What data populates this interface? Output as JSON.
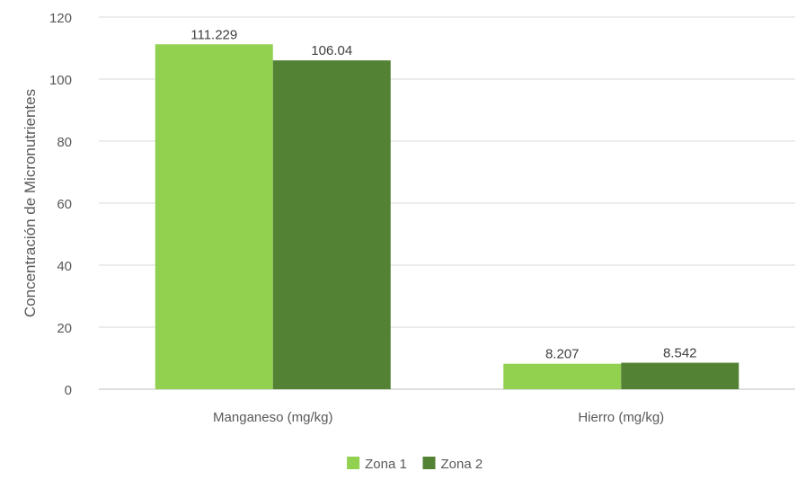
{
  "chart_data": {
    "type": "bar",
    "title": "",
    "xlabel": "",
    "ylabel": "Concentración de Micronutrientes",
    "categories": [
      "Manganeso (mg/kg)",
      "Hierro (mg/kg)"
    ],
    "series": [
      {
        "name": "Zona 1",
        "values": [
          111.229,
          8.207
        ],
        "labels": [
          "111.229",
          "8.207"
        ],
        "color": "#92d050"
      },
      {
        "name": "Zona 2",
        "values": [
          106.04,
          8.542
        ],
        "labels": [
          "106.04",
          "8.542"
        ],
        "color": "#548235"
      }
    ],
    "ylim": [
      0,
      120
    ],
    "yticks": [
      0,
      20,
      40,
      60,
      80,
      100,
      120
    ],
    "grid": true,
    "legend": "bottom"
  }
}
